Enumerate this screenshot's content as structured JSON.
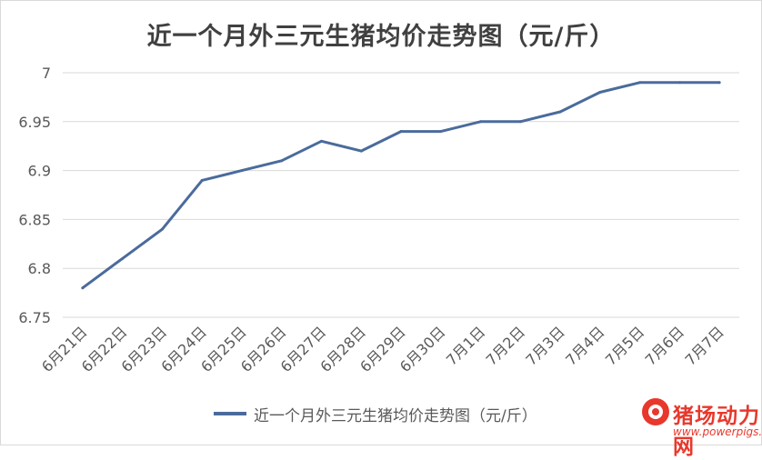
{
  "chart_data": {
    "type": "line",
    "title": "近一个月外三元生猪均价走势图（元/斤）",
    "categories": [
      "6月21日",
      "6月22日",
      "6月23日",
      "6月24日",
      "6月25日",
      "6月26日",
      "6月27日",
      "6月28日",
      "6月29日",
      "6月30日",
      "7月1日",
      "7月2日",
      "7月3日",
      "7月4日",
      "7月5日",
      "7月6日",
      "7月7日"
    ],
    "series": [
      {
        "name": "近一个月外三元生猪均价走势图（元/斤）",
        "values": [
          6.78,
          6.81,
          6.84,
          6.89,
          6.9,
          6.91,
          6.93,
          6.92,
          6.94,
          6.94,
          6.95,
          6.95,
          6.96,
          6.98,
          6.99,
          6.99,
          6.99
        ]
      }
    ],
    "ylim": [
      6.75,
      7
    ],
    "yticks": [
      "6.75",
      "6.8",
      "6.85",
      "6.9",
      "6.95",
      "7"
    ],
    "xlabel": "",
    "ylabel": "",
    "grid": true,
    "legend_position": "bottom",
    "colors": {
      "line": "#4a6b9c",
      "grid": "#d9d9d9"
    }
  },
  "watermark": {
    "text": "猪场动力网",
    "url": "www.powerpigs.net",
    "color": "#e8382c",
    "icon": "pig-logo-icon"
  }
}
